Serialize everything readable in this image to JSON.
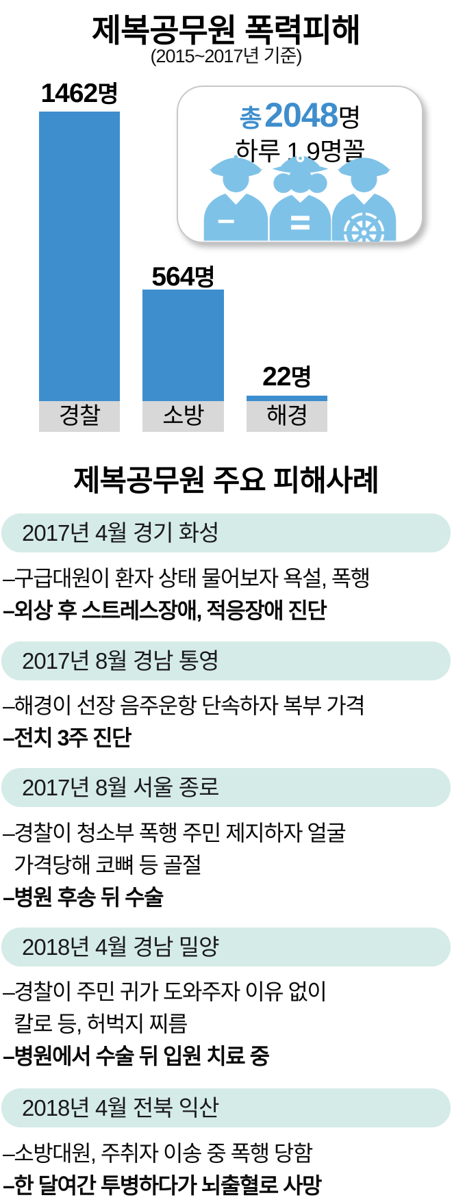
{
  "header": {
    "title": "제복공무원 폭력피해",
    "subtitle": "(2015~2017년 기준)"
  },
  "chart_data": {
    "type": "bar",
    "title": "제복공무원 폭력피해 (2015~2017년 기준)",
    "categories": [
      "경찰",
      "소방",
      "해경"
    ],
    "values": [
      1462,
      564,
      22
    ],
    "value_labels": [
      "1462",
      "564",
      "22"
    ],
    "unit": "명",
    "bar_color": "#3e8ecd",
    "category_label_bg": "#d8d8d8",
    "legend_position": "none",
    "grid": false
  },
  "summary_box": {
    "total_prefix": "총",
    "total_number": "2048",
    "total_unit": "명",
    "per_day": "하루 1.9명꼴",
    "icons": [
      "police-officer",
      "firefighter",
      "coast-guard"
    ]
  },
  "cases_section": {
    "title": "제복공무원 주요 피해사례",
    "cases": [
      {
        "header": "2017년 4월 경기 화성",
        "lines": [
          {
            "text": "–구급대원이 환자 상태 물어보자 욕설, 폭행",
            "bold": false
          },
          {
            "text": "–외상 후 스트레스장애, 적응장애 진단",
            "bold": true
          }
        ]
      },
      {
        "header": "2017년 8월 경남 통영",
        "lines": [
          {
            "text": "–해경이 선장 음주운항 단속하자 복부 가격",
            "bold": false
          },
          {
            "text": "–전치 3주 진단",
            "bold": true
          }
        ]
      },
      {
        "header": "2017년 8월 서울 종로",
        "lines": [
          {
            "text": "–경찰이 청소부 폭행 주민 제지하자 얼굴",
            "bold": false
          },
          {
            "text": "가격당해 코뼈 등 골절",
            "bold": false,
            "continuation": true
          },
          {
            "text": "–병원 후송 뒤 수술",
            "bold": true
          }
        ]
      },
      {
        "header": "2018년 4월 경남 밀양",
        "lines": [
          {
            "text": "–경찰이 주민 귀가 도와주자 이유 없이",
            "bold": false
          },
          {
            "text": "칼로 등, 허벅지 찌름",
            "bold": false,
            "continuation": true
          },
          {
            "text": "–병원에서 수술 뒤 입원 치료 중",
            "bold": true
          }
        ]
      },
      {
        "header": "2018년 4월 전북 익산",
        "lines": [
          {
            "text": "–소방대원, 주취자 이송 중 폭행 당함",
            "bold": false
          },
          {
            "text": "–한 달여간 투병하다가 뇌출혈로 사망",
            "bold": true
          }
        ]
      }
    ]
  },
  "colors": {
    "bar_blue": "#3e8ecd",
    "icon_light_blue": "#7fc2e8",
    "pill_teal": "#d5ebe8",
    "category_gray": "#d8d8d8",
    "accent_text_blue": "#3e8ecd"
  }
}
